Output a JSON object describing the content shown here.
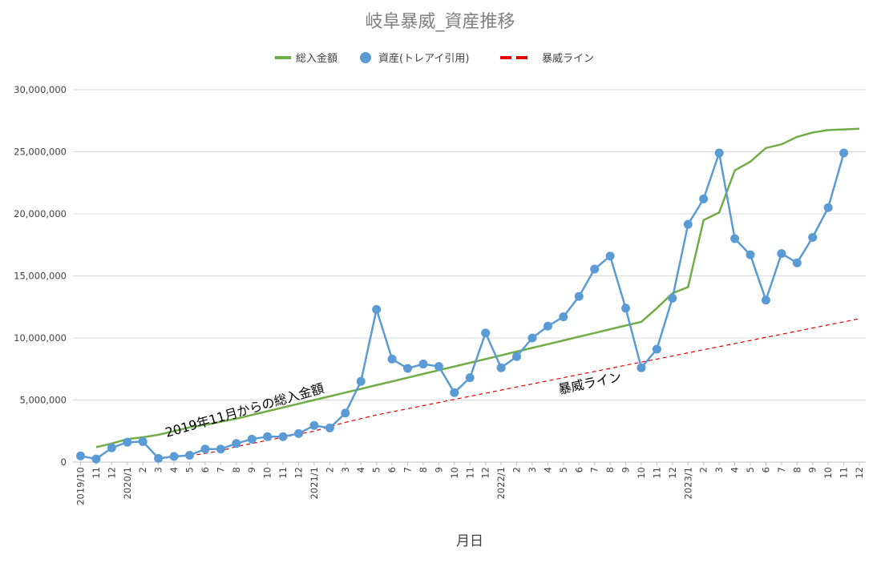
{
  "chart_data": {
    "type": "line",
    "title": "岐阜暴威_資産推移",
    "xlabel": "月日",
    "ylabel": "",
    "ylim": [
      0,
      30000000
    ],
    "y_ticks": [
      0,
      5000000,
      10000000,
      15000000,
      20000000,
      25000000,
      30000000
    ],
    "y_tick_labels": [
      "0",
      "5,000,000",
      "10,000,000",
      "15,000,000",
      "20,000,000",
      "25,000,000",
      "30,000,000"
    ],
    "grid": "horizontal",
    "legend_position": "top",
    "categories": [
      "2019/10",
      "11",
      "12",
      "2020/1",
      "2",
      "3",
      "4",
      "5",
      "6",
      "7",
      "8",
      "9",
      "10",
      "11",
      "12",
      "2021/1",
      "2",
      "3",
      "4",
      "5",
      "6",
      "7",
      "8",
      "9",
      "10",
      "11",
      "12",
      "2022/1",
      "2",
      "3",
      "4",
      "5",
      "6",
      "7",
      "8",
      "9",
      "10",
      "11",
      "12",
      "2023/1",
      "2",
      "3",
      "4",
      "5",
      "6",
      "7",
      "8",
      "9",
      "10",
      "11",
      "12"
    ],
    "series": [
      {
        "name": "総入金額",
        "style": "line",
        "color": "#70ad47",
        "values": [
          null,
          1200000,
          1500000,
          1850000,
          2000000,
          2200000,
          2500000,
          2800000,
          3000000,
          3250000,
          3500000,
          3800000,
          4100000,
          4400000,
          4700000,
          5000000,
          5300000,
          5600000,
          5900000,
          6200000,
          6500000,
          6800000,
          7100000,
          7400000,
          7700000,
          8000000,
          8300000,
          8600000,
          8900000,
          9200000,
          9500000,
          9800000,
          10100000,
          10400000,
          10700000,
          11000000,
          11300000,
          12400000,
          13600000,
          14100000,
          19500000,
          20100000,
          23500000,
          24200000,
          25300000,
          25600000,
          26200000,
          26550000,
          26750000,
          26800000,
          26850000
        ]
      },
      {
        "name": "資産(トレアイ引用)",
        "style": "line-marker",
        "color": "#5b9bd5",
        "values": [
          500000,
          250000,
          1150000,
          1600000,
          1650000,
          300000,
          450000,
          550000,
          1050000,
          1050000,
          1500000,
          1850000,
          2050000,
          2050000,
          2300000,
          2950000,
          2750000,
          3950000,
          6500000,
          12300000,
          8300000,
          7550000,
          7900000,
          7700000,
          5600000,
          6800000,
          10400000,
          7600000,
          8500000,
          10000000,
          10950000,
          11700000,
          13350000,
          15550000,
          16600000,
          12400000,
          7600000,
          9100000,
          13200000,
          19150000,
          21200000,
          24900000,
          18000000,
          16700000,
          13050000,
          16800000,
          16050000,
          18100000,
          20500000,
          24900000,
          null
        ]
      },
      {
        "name": "暴威ライン",
        "style": "dashed",
        "color": "#e00000",
        "values": [
          null,
          null,
          null,
          null,
          null,
          null,
          null,
          500000,
          700000,
          900000,
          1250000,
          1500000,
          1750000,
          2000000,
          2250000,
          2500000,
          2850000,
          3200000,
          3500000,
          3800000,
          4050000,
          4300000,
          4550000,
          4800000,
          5050000,
          5300000,
          5550000,
          5800000,
          6050000,
          6300000,
          6550000,
          6800000,
          7050000,
          7300000,
          7550000,
          7800000,
          8050000,
          8300000,
          8550000,
          8800000,
          9050000,
          9300000,
          9550000,
          9800000,
          10050000,
          10300000,
          10550000,
          10800000,
          11050000,
          11300000,
          11550000
        ]
      }
    ],
    "annotations": [
      {
        "text": "2019年11月からの総入金額"
      },
      {
        "text": "暴威ライン"
      }
    ]
  }
}
